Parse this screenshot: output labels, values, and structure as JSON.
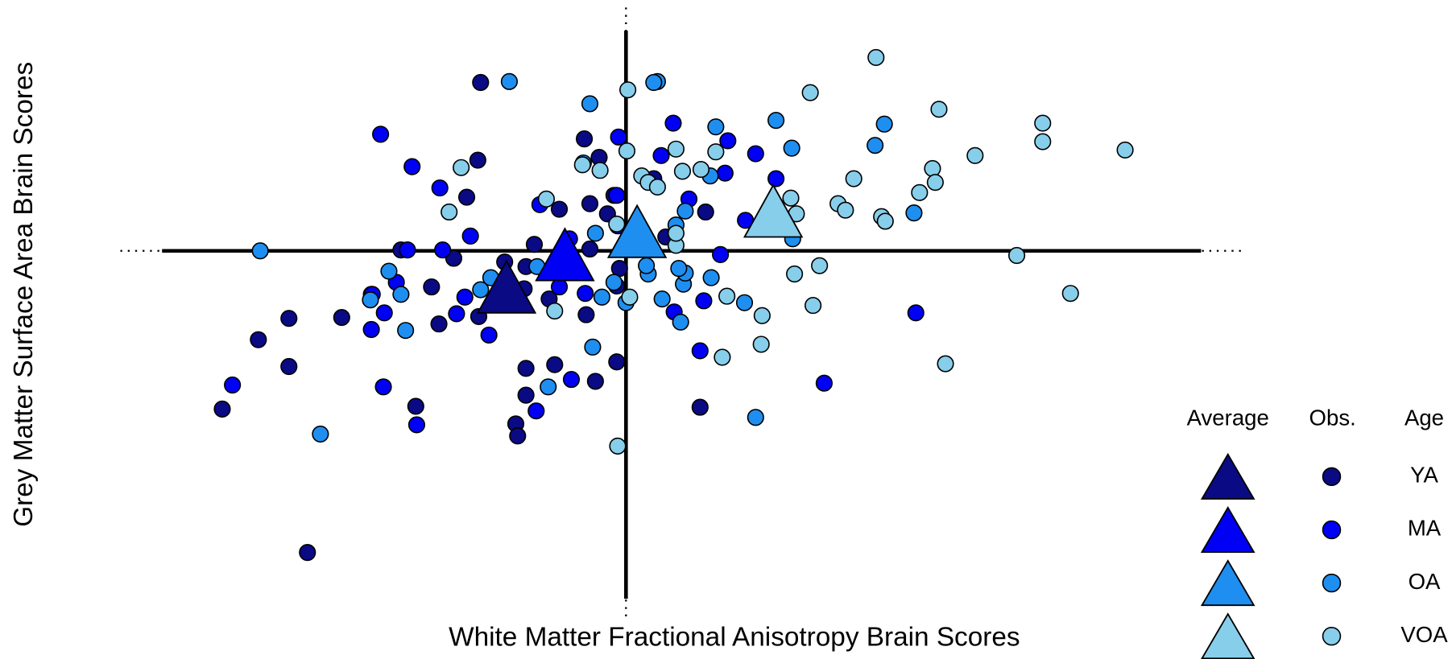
{
  "chart_data": {
    "type": "scatter",
    "x_label": "White Matter Fractional Anisotropy Brain Scores",
    "y_label": "Grey Matter Surface Area Brain Scores",
    "xlim": [
      -5.46,
      6.64
    ],
    "ylim": [
      -3.99,
      2.63
    ],
    "legend_headers": [
      "Average",
      "Obs.",
      "Age"
    ],
    "legend": "bottom-right",
    "series": [
      {
        "name": "YA",
        "color": "#0a0a85",
        "mean_x": -1.29,
        "mean_y": -0.39,
        "x": [
          -1.57,
          -1.6,
          -1.72,
          -1.86,
          -2.1,
          -2.02,
          -1.59,
          -1.31,
          -1.08,
          -0.99,
          -0.72,
          -0.39,
          -0.45,
          -0.29,
          -0.2,
          -0.39,
          -0.13,
          0.3,
          0.43,
          -0.1,
          -0.07,
          -0.83,
          -0.43,
          -1.08,
          -0.77,
          -1.08,
          -1.19,
          -1.17,
          -0.33,
          -0.1,
          0.8,
          -2.27,
          -3.64,
          -3.44,
          -4.36,
          -3.64,
          -3.07,
          -3.97,
          -2.75,
          0.86,
          -2.43,
          -1.1
        ],
        "y": [
          1.82,
          0.98,
          0.58,
          -0.08,
          -0.39,
          -0.79,
          -0.71,
          -0.12,
          -0.17,
          0.07,
          0.45,
          0.51,
          1.21,
          1.01,
          0.4,
          0.02,
          0.6,
          0.78,
          0.15,
          -0.38,
          -0.19,
          -0.52,
          -0.69,
          -1.27,
          -1.23,
          -1.56,
          -1.87,
          -2.0,
          -1.41,
          -1.2,
          -1.69,
          -1.68,
          -1.25,
          -3.26,
          -1.71,
          -0.73,
          -0.72,
          -0.96,
          -0.47,
          0.42,
          0.01,
          -0.41
        ]
      },
      {
        "name": "MA",
        "color": "#0000f5",
        "mean_x": -0.66,
        "mean_y": -0.04,
        "x": [
          -2.65,
          -2.31,
          -2.01,
          -1.68,
          -1.98,
          -2.36,
          -2.48,
          -2.74,
          -2.61,
          -2.75,
          -2.62,
          -2.26,
          -4.25,
          -1.83,
          -1.74,
          -1.48,
          -0.93,
          -0.61,
          -0.44,
          -0.72,
          -0.59,
          -0.97,
          -0.08,
          -0.1,
          0.38,
          0.51,
          1.1,
          1.07,
          0.68,
          1.02,
          0.52,
          0.84,
          0.8,
          2.14,
          3.13,
          1.4,
          1.62,
          1.29,
          -0.09
        ],
        "y": [
          1.26,
          0.91,
          0.68,
          0.16,
          0.01,
          0.01,
          -0.34,
          -0.47,
          -0.67,
          -0.85,
          -1.47,
          -1.88,
          -1.45,
          -0.68,
          -0.5,
          -0.91,
          0.5,
          0.13,
          -0.46,
          -0.39,
          -1.39,
          -1.73,
          1.23,
          0.6,
          1.03,
          1.38,
          1.19,
          0.84,
          0.56,
          -0.04,
          -0.66,
          -0.54,
          -1.08,
          -1.43,
          -0.67,
          1.05,
          0.78,
          0.33,
          0.27
        ]
      },
      {
        "name": "OA",
        "color": "#1e8ff0",
        "mean_x": 0.12,
        "mean_y": 0.21,
        "x": [
          -1.26,
          -3.95,
          -3.3,
          -2.56,
          -2.43,
          -2.38,
          -2.76,
          -1.57,
          -1.46,
          -0.96,
          -0.84,
          -0.36,
          -0.26,
          -0.39,
          -0.46,
          -0.33,
          -0.13,
          0.0,
          0.24,
          0.39,
          0.59,
          0.62,
          0.92,
          1.28,
          0.97,
          1.62,
          1.79,
          0.54,
          0.64,
          1.4,
          2.69,
          2.79,
          3.11,
          1.8,
          0.34,
          0.3,
          0.91,
          0.64,
          0.57,
          0.22
        ],
        "y": [
          1.83,
          0.0,
          -1.98,
          -0.22,
          -0.47,
          -0.86,
          -0.53,
          -0.42,
          -0.29,
          -0.17,
          -1.47,
          -1.04,
          -0.5,
          1.59,
          0.95,
          0.19,
          -0.34,
          -0.56,
          -0.25,
          -0.52,
          -0.77,
          -0.36,
          -0.29,
          -0.56,
          1.34,
          1.41,
          1.11,
          0.28,
          0.43,
          -1.8,
          1.14,
          1.37,
          0.41,
          0.13,
          1.83,
          1.82,
          0.81,
          -0.24,
          -0.19,
          -0.16
        ]
      },
      {
        "name": "VOA",
        "color": "#87ceeb",
        "mean_x": 1.59,
        "mean_y": 0.43,
        "x": [
          2.7,
          1.99,
          3.38,
          4.5,
          4.5,
          5.39,
          3.77,
          3.31,
          3.34,
          3.17,
          2.46,
          2.29,
          2.37,
          2.76,
          2.8,
          1.78,
          1.84,
          2.09,
          1.82,
          2.02,
          1.47,
          1.46,
          1.04,
          1.09,
          4.22,
          4.8,
          3.45,
          0.02,
          0.01,
          0.54,
          0.97,
          0.17,
          0.24,
          0.34,
          0.61,
          0.81,
          -0.28,
          -0.47,
          -0.86,
          -1.78,
          -1.91,
          0.54,
          0.54,
          -0.1,
          0.04,
          -0.77,
          -0.09
        ],
        "y": [
          2.09,
          1.71,
          1.53,
          1.38,
          1.18,
          1.09,
          1.03,
          0.89,
          0.74,
          0.63,
          0.78,
          0.51,
          0.44,
          0.37,
          0.32,
          0.57,
          0.4,
          -0.16,
          -0.25,
          -0.59,
          -0.7,
          -1.01,
          -1.15,
          -0.49,
          -0.05,
          -0.46,
          -1.22,
          1.74,
          1.08,
          1.1,
          1.07,
          0.81,
          0.74,
          0.69,
          0.86,
          0.88,
          0.87,
          0.93,
          0.56,
          0.9,
          0.42,
          0.06,
          0.19,
          0.29,
          -0.5,
          -0.65,
          -2.11
        ]
      }
    ]
  }
}
